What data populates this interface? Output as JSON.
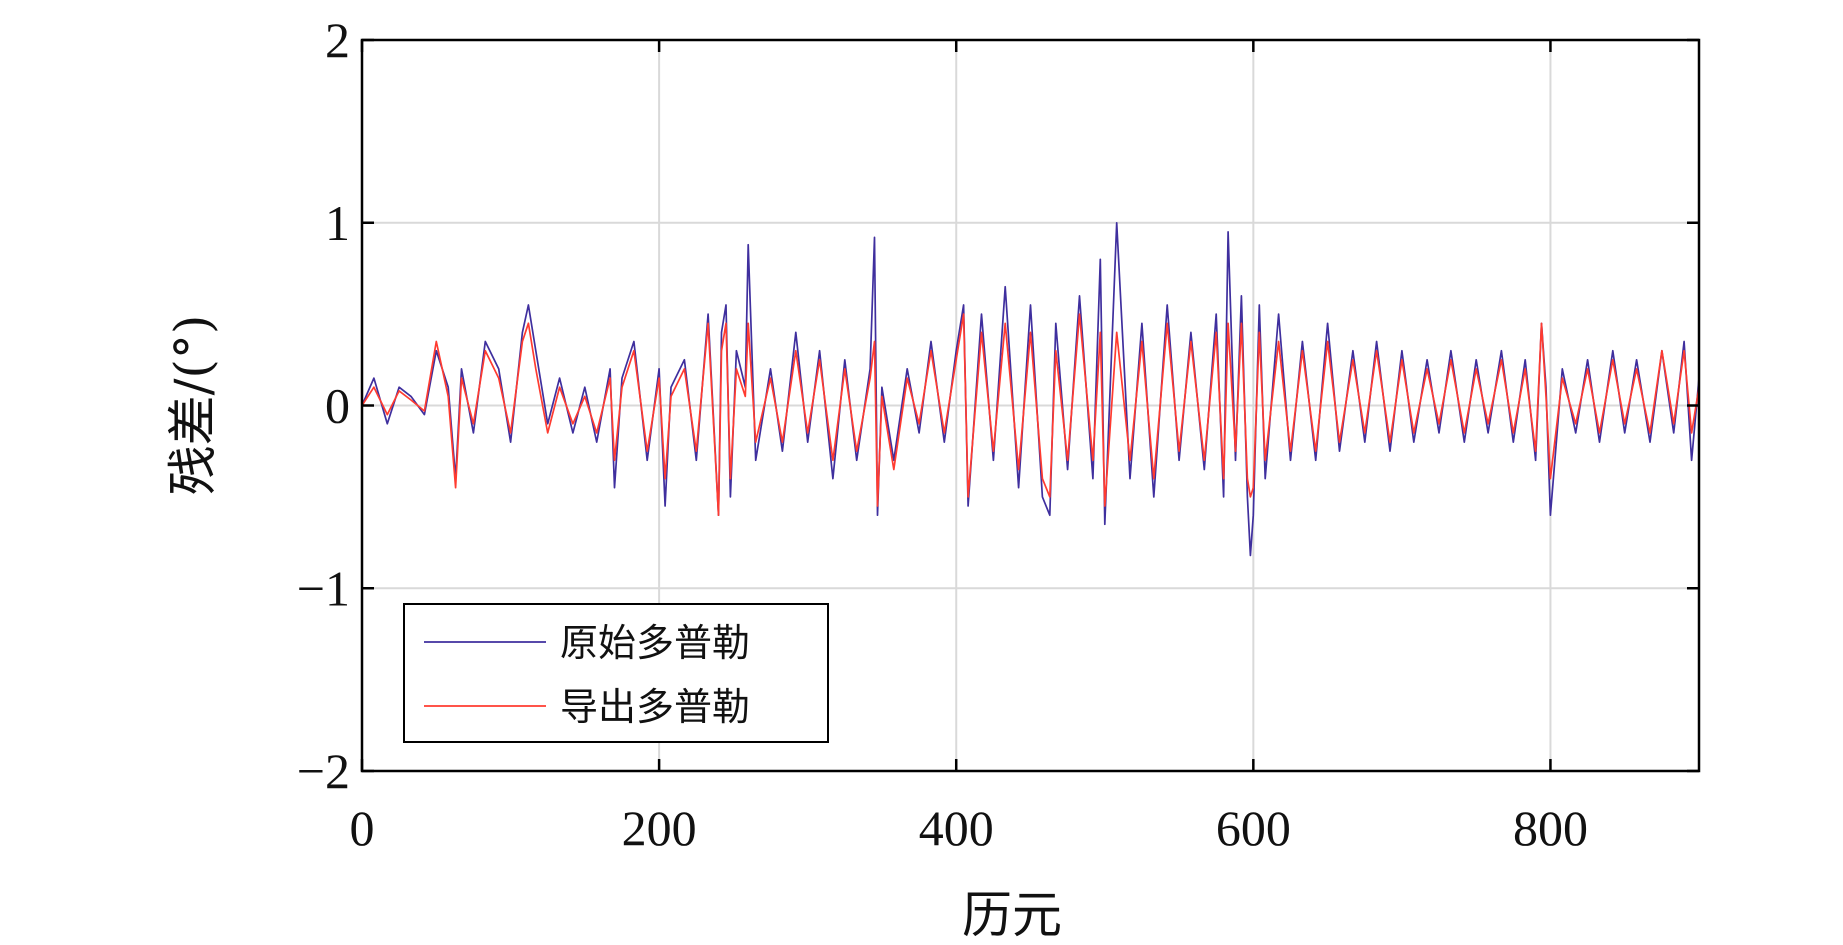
{
  "chart_data": {
    "type": "line",
    "title": "",
    "xlabel": "历元",
    "ylabel": "残差/(°)",
    "xlim": [
      0,
      900
    ],
    "ylim": [
      -2,
      2
    ],
    "xticks": [
      0,
      200,
      400,
      600,
      800
    ],
    "yticks": [
      2,
      1,
      0,
      -1,
      -2
    ],
    "xtick_labels": [
      "0",
      "200",
      "400",
      "600",
      "800"
    ],
    "ytick_labels": [
      "2",
      "1",
      "0",
      "−1",
      "−2"
    ],
    "grid": true,
    "legend_position": "bottom-left",
    "series": [
      {
        "name": "原始多普勒",
        "color": "#3f2f9e",
        "x": [
          0,
          8,
          17,
          25,
          33,
          42,
          50,
          58,
          63,
          67,
          75,
          83,
          92,
          100,
          108,
          112,
          117,
          125,
          133,
          142,
          150,
          158,
          167,
          170,
          175,
          183,
          192,
          200,
          204,
          208,
          217,
          225,
          233,
          240,
          242,
          245,
          248,
          252,
          258,
          260,
          265,
          275,
          283,
          292,
          300,
          308,
          317,
          325,
          333,
          342,
          345,
          347,
          350,
          358,
          367,
          375,
          383,
          392,
          400,
          405,
          408,
          417,
          425,
          433,
          442,
          450,
          458,
          463,
          467,
          475,
          483,
          492,
          497,
          500,
          508,
          517,
          525,
          533,
          542,
          550,
          558,
          567,
          575,
          580,
          583,
          588,
          592,
          596,
          598,
          600,
          604,
          608,
          617,
          625,
          633,
          642,
          650,
          658,
          667,
          675,
          683,
          692,
          700,
          708,
          717,
          725,
          733,
          742,
          750,
          758,
          767,
          775,
          783,
          790,
          794,
          797,
          800,
          808,
          817,
          825,
          833,
          842,
          850,
          858,
          867,
          875,
          883,
          890,
          895,
          900
        ],
        "y": [
          0.0,
          0.15,
          -0.1,
          0.1,
          0.05,
          -0.05,
          0.3,
          0.1,
          -0.4,
          0.2,
          -0.15,
          0.35,
          0.2,
          -0.2,
          0.4,
          0.55,
          0.3,
          -0.1,
          0.15,
          -0.15,
          0.1,
          -0.2,
          0.2,
          -0.45,
          0.15,
          0.35,
          -0.3,
          0.2,
          -0.55,
          0.1,
          0.25,
          -0.3,
          0.5,
          -0.6,
          0.4,
          0.55,
          -0.5,
          0.3,
          0.1,
          0.88,
          -0.3,
          0.2,
          -0.25,
          0.4,
          -0.2,
          0.3,
          -0.4,
          0.25,
          -0.3,
          0.2,
          0.92,
          -0.6,
          0.1,
          -0.3,
          0.2,
          -0.15,
          0.35,
          -0.2,
          0.3,
          0.55,
          -0.55,
          0.5,
          -0.3,
          0.65,
          -0.45,
          0.55,
          -0.5,
          -0.6,
          0.45,
          -0.35,
          0.6,
          -0.4,
          0.8,
          -0.65,
          1.0,
          -0.4,
          0.45,
          -0.5,
          0.55,
          -0.3,
          0.4,
          -0.35,
          0.5,
          -0.5,
          0.95,
          -0.3,
          0.6,
          -0.5,
          -0.82,
          -0.6,
          0.55,
          -0.4,
          0.5,
          -0.3,
          0.35,
          -0.3,
          0.45,
          -0.25,
          0.3,
          -0.2,
          0.35,
          -0.25,
          0.3,
          -0.2,
          0.25,
          -0.15,
          0.3,
          -0.2,
          0.25,
          -0.15,
          0.3,
          -0.2,
          0.25,
          -0.3,
          0.45,
          0.1,
          -0.6,
          0.2,
          -0.15,
          0.25,
          -0.2,
          0.3,
          -0.15,
          0.25,
          -0.2,
          0.3,
          -0.15,
          0.35,
          -0.3,
          0.15
        ]
      },
      {
        "name": "导出多普勒",
        "color": "#ff3b30",
        "x": [
          0,
          8,
          17,
          25,
          33,
          42,
          50,
          58,
          63,
          67,
          75,
          83,
          92,
          100,
          108,
          112,
          117,
          125,
          133,
          142,
          150,
          158,
          167,
          170,
          175,
          183,
          192,
          200,
          204,
          208,
          217,
          225,
          233,
          240,
          242,
          245,
          248,
          252,
          258,
          260,
          265,
          275,
          283,
          292,
          300,
          308,
          317,
          325,
          333,
          342,
          345,
          347,
          350,
          358,
          367,
          375,
          383,
          392,
          400,
          405,
          408,
          417,
          425,
          433,
          442,
          450,
          458,
          463,
          467,
          475,
          483,
          492,
          497,
          500,
          508,
          517,
          525,
          533,
          542,
          550,
          558,
          567,
          575,
          580,
          583,
          588,
          592,
          596,
          598,
          600,
          604,
          608,
          617,
          625,
          633,
          642,
          650,
          658,
          667,
          675,
          683,
          692,
          700,
          708,
          717,
          725,
          733,
          742,
          750,
          758,
          767,
          775,
          783,
          790,
          794,
          797,
          800,
          808,
          817,
          825,
          833,
          842,
          850,
          858,
          867,
          875,
          883,
          890,
          895,
          900
        ],
        "y": [
          0.0,
          0.1,
          -0.05,
          0.08,
          0.03,
          -0.03,
          0.35,
          0.05,
          -0.45,
          0.15,
          -0.1,
          0.3,
          0.15,
          -0.15,
          0.35,
          0.45,
          0.2,
          -0.15,
          0.1,
          -0.1,
          0.05,
          -0.15,
          0.15,
          -0.3,
          0.1,
          0.3,
          -0.25,
          0.15,
          -0.4,
          0.05,
          0.2,
          -0.25,
          0.45,
          -0.6,
          0.3,
          0.45,
          -0.4,
          0.2,
          0.05,
          0.45,
          -0.2,
          0.15,
          -0.2,
          0.3,
          -0.15,
          0.25,
          -0.3,
          0.2,
          -0.25,
          0.15,
          0.35,
          -0.55,
          0.05,
          -0.35,
          0.15,
          -0.1,
          0.3,
          -0.15,
          0.25,
          0.5,
          -0.5,
          0.4,
          -0.25,
          0.45,
          -0.35,
          0.4,
          -0.4,
          -0.5,
          0.3,
          -0.3,
          0.5,
          -0.3,
          0.4,
          -0.55,
          0.4,
          -0.3,
          0.35,
          -0.4,
          0.45,
          -0.25,
          0.35,
          -0.3,
          0.4,
          -0.4,
          0.45,
          -0.25,
          0.45,
          -0.4,
          -0.5,
          -0.45,
          0.4,
          -0.3,
          0.35,
          -0.25,
          0.3,
          -0.25,
          0.35,
          -0.2,
          0.25,
          -0.15,
          0.3,
          -0.2,
          0.25,
          -0.15,
          0.2,
          -0.1,
          0.25,
          -0.15,
          0.2,
          -0.1,
          0.25,
          -0.15,
          0.2,
          -0.25,
          0.45,
          0.05,
          -0.4,
          0.15,
          -0.1,
          0.2,
          -0.15,
          0.25,
          -0.1,
          0.2,
          -0.15,
          0.3,
          -0.1,
          0.3,
          -0.15,
          0.1
        ]
      }
    ]
  }
}
